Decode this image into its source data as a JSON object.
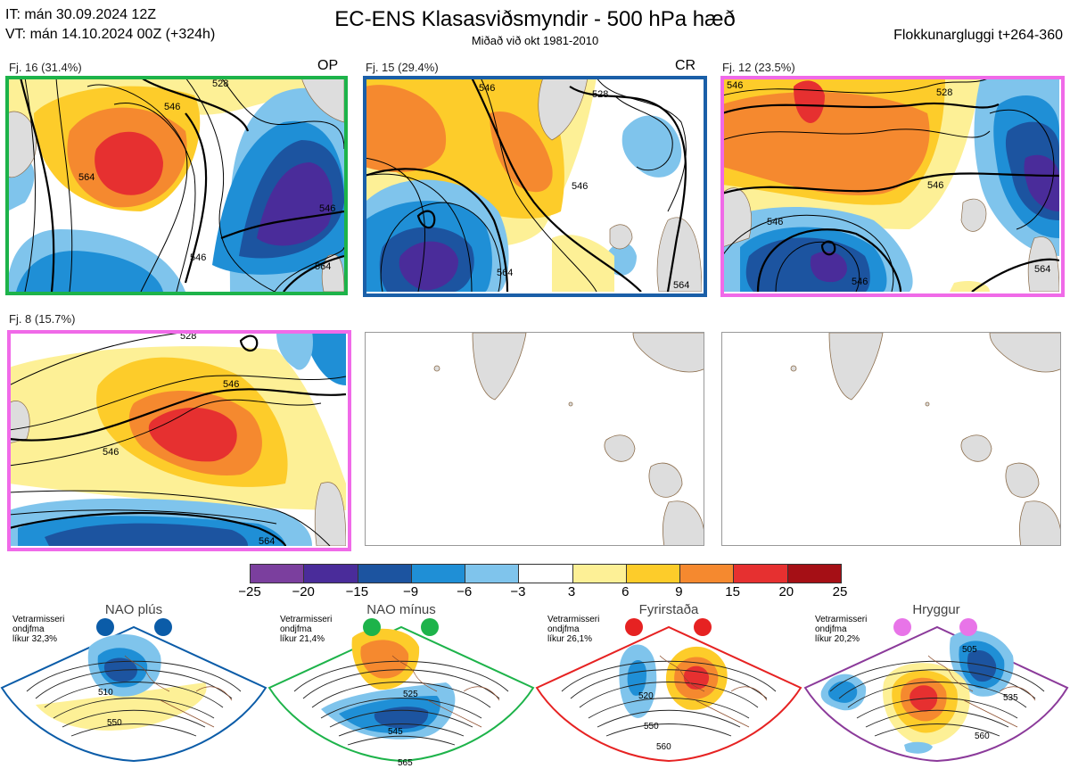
{
  "header": {
    "it": "IT: mán 30.09.2024 12Z",
    "vt": "VT: mán 14.10.2024 00Z  (+324h)",
    "title": "EC-ENS Klasasviðsmyndir - 500 hPa hæð",
    "subtitle": "Miðað við okt 1981-2010",
    "window": "Flokkunargluggi t+264-360"
  },
  "panels": [
    {
      "label": "Fj. 16 (31.4%)",
      "tag": "OP",
      "border": "#1db34a"
    },
    {
      "label": "Fj. 15 (29.4%)",
      "tag": "CR",
      "border": "#1a5fa8"
    },
    {
      "label": "Fj. 12 (23.5%)",
      "tag": "",
      "border": "#f06ae8"
    },
    {
      "label": "Fj. 8 (15.7%)",
      "tag": "",
      "border": "#f06ae8"
    }
  ],
  "contour_labels": {
    "p1": [
      "528",
      "546",
      "564",
      "546",
      "564",
      "546"
    ],
    "p2": [
      "546",
      "528",
      "546",
      "564",
      "564"
    ],
    "p3": [
      "546",
      "528",
      "546",
      "546",
      "546",
      "564"
    ],
    "p4": [
      "528",
      "546",
      "546",
      "564"
    ]
  },
  "colorbar": {
    "colors": [
      "#7b3f9e",
      "#4a2c9a",
      "#1c54a0",
      "#1f8fd6",
      "#7fc4ec",
      "#ffffff",
      "#fdf096",
      "#fdcc2a",
      "#f5892f",
      "#e63030",
      "#a50f15"
    ],
    "ticks": [
      "−25",
      "−20",
      "−15",
      "−9",
      "−6",
      "−3",
      "3",
      "6",
      "9",
      "15",
      "20",
      "25"
    ]
  },
  "regimes": [
    {
      "name": "NAO plús",
      "stat": [
        "Vetrarmisseri",
        "ondjfma",
        "líkur 32,3%"
      ],
      "dot": "#0b5ca8",
      "border": "#0b5ca8",
      "labels": [
        "510",
        "550"
      ]
    },
    {
      "name": "NAO mínus",
      "stat": [
        "Vetrarmisseri",
        "ondjfma",
        "líkur 21,4%"
      ],
      "dot": "#1db34a",
      "border": "#1db34a",
      "labels": [
        "525",
        "545",
        "565"
      ]
    },
    {
      "name": "Fyrirstaða",
      "stat": [
        "Vetrarmisseri",
        "ondjfma",
        "líkur 26,1%"
      ],
      "dot": "#e62222",
      "border": "#e62222",
      "labels": [
        "520",
        "550",
        "560"
      ]
    },
    {
      "name": "Hryggur",
      "stat": [
        "Vetrarmisseri",
        "ondjfma",
        "líkur 20,2%"
      ],
      "dot": "#e874e8",
      "border": "#8b3a9a",
      "labels": [
        "505",
        "535",
        "560"
      ]
    }
  ]
}
